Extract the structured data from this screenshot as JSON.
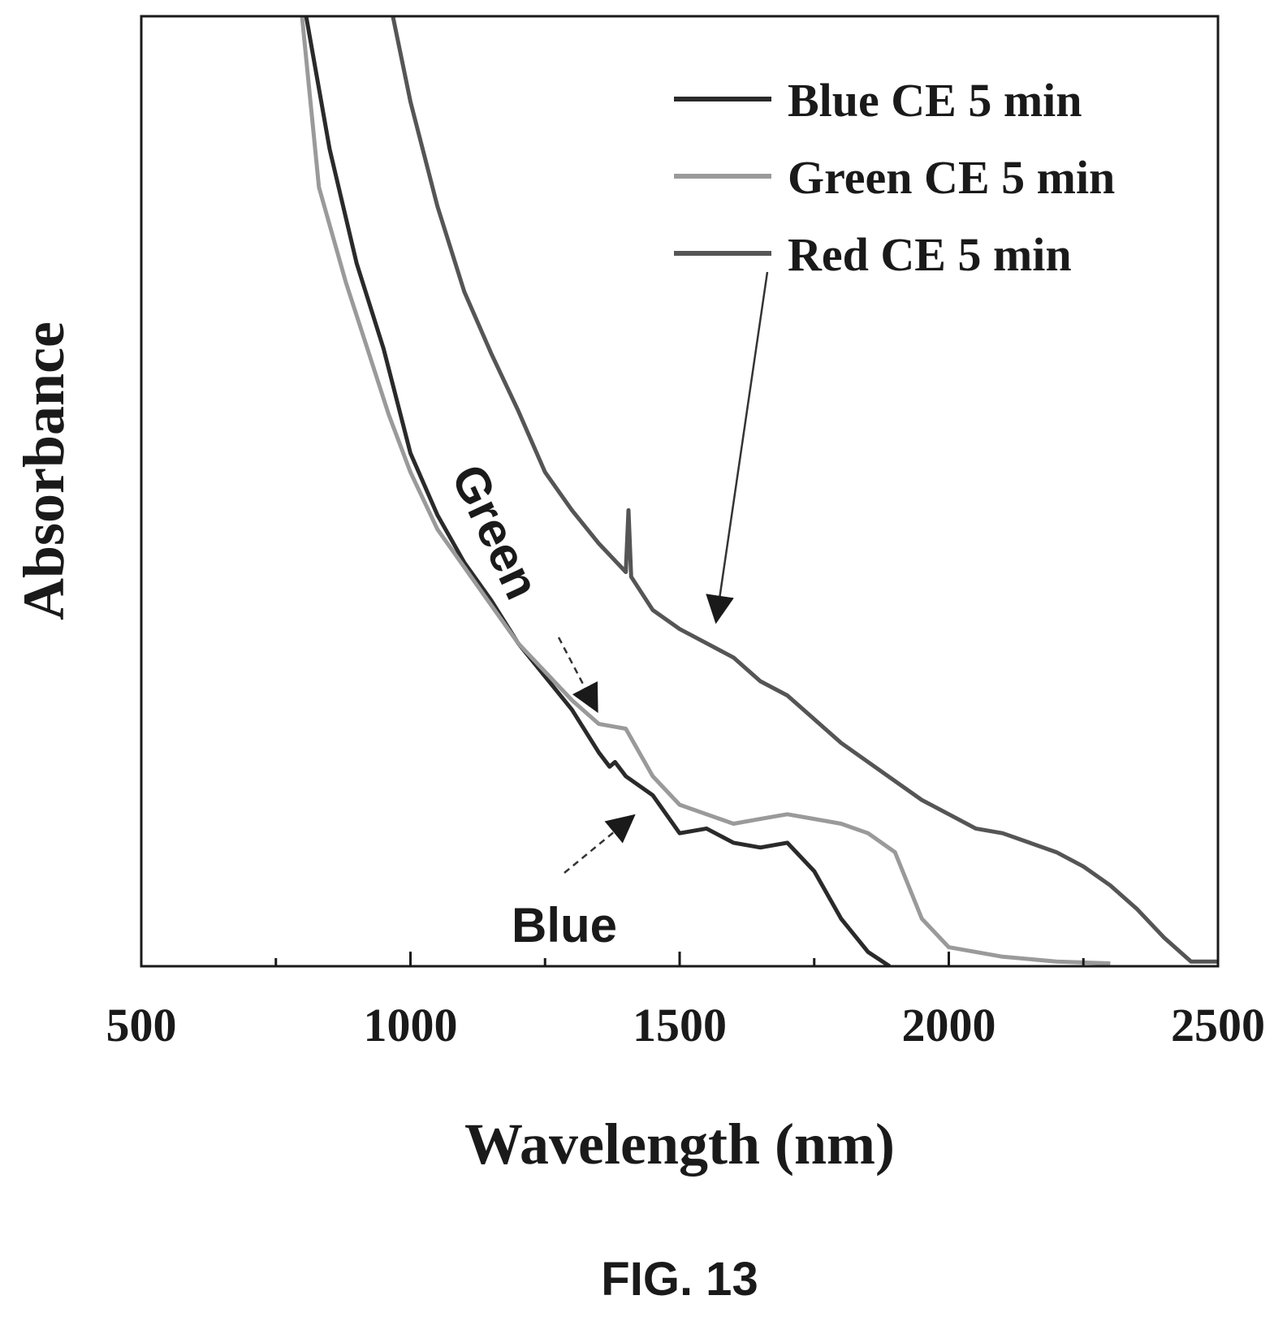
{
  "chart_data": {
    "type": "line",
    "title": "",
    "xlabel": "Wavelength (nm)",
    "ylabel": "Absorbance",
    "xlim": [
      500,
      2500
    ],
    "ylim": [
      0,
      1
    ],
    "x_ticks": [
      500,
      1000,
      1500,
      2000,
      2500
    ],
    "x_tick_labels": [
      "500",
      "1000",
      "1500",
      "2000",
      "2500"
    ],
    "grid": false,
    "legend_position": "top-right",
    "series": [
      {
        "name": "Blue CE 5 min",
        "color": "#2a2a2a",
        "points": [
          [
            800,
            1.02
          ],
          [
            850,
            0.86
          ],
          [
            900,
            0.74
          ],
          [
            950,
            0.65
          ],
          [
            1000,
            0.54
          ],
          [
            1050,
            0.475
          ],
          [
            1100,
            0.425
          ],
          [
            1150,
            0.385
          ],
          [
            1200,
            0.34
          ],
          [
            1250,
            0.305
          ],
          [
            1300,
            0.27
          ],
          [
            1350,
            0.225
          ],
          [
            1370,
            0.21
          ],
          [
            1380,
            0.215
          ],
          [
            1400,
            0.2
          ],
          [
            1450,
            0.18
          ],
          [
            1500,
            0.14
          ],
          [
            1550,
            0.145
          ],
          [
            1600,
            0.13
          ],
          [
            1650,
            0.125
          ],
          [
            1700,
            0.13
          ],
          [
            1750,
            0.1
          ],
          [
            1800,
            0.05
          ],
          [
            1850,
            0.015
          ],
          [
            1890,
            0.0
          ]
        ]
      },
      {
        "name": "Green CE 5 min",
        "color": "#9a9a9a",
        "points": [
          [
            795,
            1.02
          ],
          [
            830,
            0.82
          ],
          [
            880,
            0.72
          ],
          [
            920,
            0.65
          ],
          [
            960,
            0.58
          ],
          [
            1000,
            0.52
          ],
          [
            1050,
            0.46
          ],
          [
            1100,
            0.42
          ],
          [
            1150,
            0.38
          ],
          [
            1200,
            0.34
          ],
          [
            1250,
            0.31
          ],
          [
            1300,
            0.28
          ],
          [
            1350,
            0.255
          ],
          [
            1400,
            0.25
          ],
          [
            1450,
            0.2
          ],
          [
            1500,
            0.17
          ],
          [
            1550,
            0.16
          ],
          [
            1600,
            0.15
          ],
          [
            1650,
            0.155
          ],
          [
            1700,
            0.16
          ],
          [
            1750,
            0.155
          ],
          [
            1800,
            0.15
          ],
          [
            1850,
            0.14
          ],
          [
            1900,
            0.12
          ],
          [
            1950,
            0.05
          ],
          [
            2000,
            0.02
          ],
          [
            2100,
            0.01
          ],
          [
            2200,
            0.005
          ],
          [
            2300,
            0.003
          ]
        ]
      },
      {
        "name": "Red CE 5 min",
        "color": "#555555",
        "points": [
          [
            960,
            1.02
          ],
          [
            1000,
            0.91
          ],
          [
            1050,
            0.8
          ],
          [
            1100,
            0.71
          ],
          [
            1150,
            0.645
          ],
          [
            1200,
            0.585
          ],
          [
            1250,
            0.52
          ],
          [
            1300,
            0.48
          ],
          [
            1350,
            0.445
          ],
          [
            1400,
            0.415
          ],
          [
            1405,
            0.48
          ],
          [
            1410,
            0.41
          ],
          [
            1450,
            0.375
          ],
          [
            1500,
            0.355
          ],
          [
            1550,
            0.34
          ],
          [
            1600,
            0.325
          ],
          [
            1650,
            0.3
          ],
          [
            1700,
            0.285
          ],
          [
            1750,
            0.26
          ],
          [
            1800,
            0.235
          ],
          [
            1850,
            0.215
          ],
          [
            1900,
            0.195
          ],
          [
            1950,
            0.175
          ],
          [
            2000,
            0.16
          ],
          [
            2050,
            0.145
          ],
          [
            2100,
            0.14
          ],
          [
            2150,
            0.13
          ],
          [
            2200,
            0.12
          ],
          [
            2250,
            0.105
          ],
          [
            2300,
            0.085
          ],
          [
            2350,
            0.06
          ],
          [
            2400,
            0.03
          ],
          [
            2450,
            0.005
          ],
          [
            2500,
            0.005
          ]
        ]
      }
    ],
    "annotations": [
      {
        "text": "Green",
        "target_series": "Green CE 5 min"
      },
      {
        "text": "Blue",
        "target_series": "Blue CE 5 min"
      }
    ]
  },
  "figure_label": "FIG. 13"
}
